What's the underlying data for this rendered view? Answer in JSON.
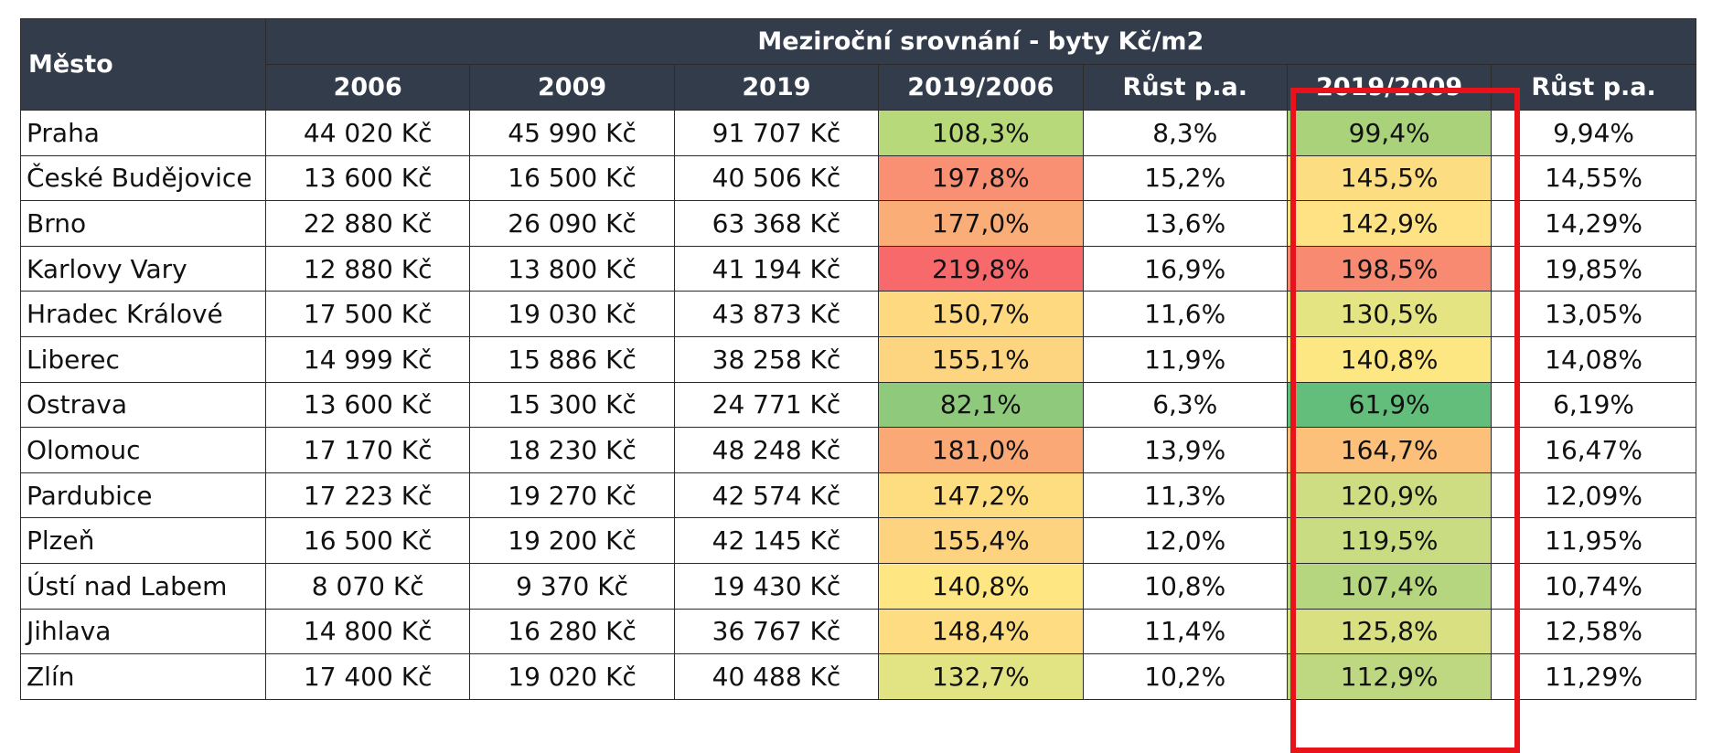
{
  "table": {
    "city_header": "Město",
    "group_header": "Meziroční srovnání - byty Kč/m2",
    "columns": [
      "2006",
      "2009",
      "2019",
      "2019/2006",
      "Růst p.a.",
      "2019/2009",
      "Růst p.a."
    ],
    "rows": [
      {
        "city": "Praha",
        "v2006": "44 020 Kč",
        "v2009": "45 990 Kč",
        "v2019": "91 707 Kč",
        "r2019_2006": "108,3%",
        "growth1": "8,3%",
        "r2019_2009": "99,4%",
        "growth2": "9,94%",
        "color1": "#b8d97a",
        "color2": "#a9d27b"
      },
      {
        "city": "České Budějovice",
        "v2006": "13 600 Kč",
        "v2009": "16 500 Kč",
        "v2019": "40 506 Kč",
        "r2019_2006": "197,8%",
        "growth1": "15,2%",
        "r2019_2009": "145,5%",
        "growth2": "14,55%",
        "color1": "#f98f73",
        "color2": "#fddd81"
      },
      {
        "city": "Brno",
        "v2006": "22 880 Kč",
        "v2009": "26 090 Kč",
        "v2019": "63 368 Kč",
        "r2019_2006": "177,0%",
        "growth1": "13,6%",
        "r2019_2009": "142,9%",
        "growth2": "14,29%",
        "color1": "#fbad78",
        "color2": "#fee283"
      },
      {
        "city": "Karlovy Vary",
        "v2006": "12 880 Kč",
        "v2009": "13 800 Kč",
        "v2019": "41 194 Kč",
        "r2019_2006": "219,8%",
        "growth1": "16,9%",
        "r2019_2009": "198,5%",
        "growth2": "19,85%",
        "color1": "#f8696b",
        "color2": "#f98a72"
      },
      {
        "city": "Hradec Králové",
        "v2006": "17 500 Kč",
        "v2009": "19 030 Kč",
        "v2019": "43 873 Kč",
        "r2019_2006": "150,7%",
        "growth1": "11,6%",
        "r2019_2009": "130,5%",
        "growth2": "13,05%",
        "color1": "#fed980",
        "color2": "#e4e483"
      },
      {
        "city": "Liberec",
        "v2006": "14 999 Kč",
        "v2009": "15 886 Kč",
        "v2019": "38 258 Kč",
        "r2019_2006": "155,1%",
        "growth1": "11,9%",
        "r2019_2009": "140,8%",
        "growth2": "14,08%",
        "color1": "#fdd47f",
        "color2": "#fde783"
      },
      {
        "city": "Ostrava",
        "v2006": "13 600 Kč",
        "v2009": "15 300 Kč",
        "v2019": "24 771 Kč",
        "r2019_2006": "82,1%",
        "growth1": "6,3%",
        "r2019_2009": "61,9%",
        "growth2": "6,19%",
        "color1": "#8fc97c",
        "color2": "#63be7b"
      },
      {
        "city": "Olomouc",
        "v2006": "17 170 Kč",
        "v2009": "18 230 Kč",
        "v2019": "48 248 Kč",
        "r2019_2006": "181,0%",
        "growth1": "13,9%",
        "r2019_2009": "164,7%",
        "growth2": "16,47%",
        "color1": "#fba877",
        "color2": "#fcc07b"
      },
      {
        "city": "Pardubice",
        "v2006": "17 223 Kč",
        "v2009": "19 270 Kč",
        "v2019": "42 574 Kč",
        "r2019_2006": "147,2%",
        "growth1": "11,3%",
        "r2019_2009": "120,9%",
        "growth2": "12,09%",
        "color1": "#fedd81",
        "color2": "#cfdd82"
      },
      {
        "city": "Plzeň",
        "v2006": "16 500 Kč",
        "v2009": "19 200 Kč",
        "v2019": "42 145 Kč",
        "r2019_2006": "155,4%",
        "growth1": "12,0%",
        "r2019_2009": "119,5%",
        "growth2": "11,95%",
        "color1": "#fdd37f",
        "color2": "#cadc81"
      },
      {
        "city": "Ústí nad Labem",
        "v2006": "8 070 Kč",
        "v2009": "9 370 Kč",
        "v2019": "19 430 Kč",
        "r2019_2006": "140,8%",
        "growth1": "10,8%",
        "r2019_2009": "107,4%",
        "growth2": "10,74%",
        "color1": "#fee783",
        "color2": "#b5d67f"
      },
      {
        "city": "Jihlava",
        "v2006": "14 800 Kč",
        "v2009": "16 280 Kč",
        "v2019": "36 767 Kč",
        "r2019_2006": "148,4%",
        "growth1": "11,4%",
        "r2019_2009": "125,8%",
        "growth2": "12,58%",
        "color1": "#fedc81",
        "color2": "#d8e082"
      },
      {
        "city": "Zlín",
        "v2006": "17 400 Kč",
        "v2009": "19 020 Kč",
        "v2019": "40 488 Kč",
        "r2019_2006": "132,7%",
        "growth1": "10,2%",
        "r2019_2009": "112,9%",
        "growth2": "11,29%",
        "color1": "#e2e383",
        "color2": "#bdd881"
      }
    ],
    "highlight_color": "#e8121a"
  }
}
